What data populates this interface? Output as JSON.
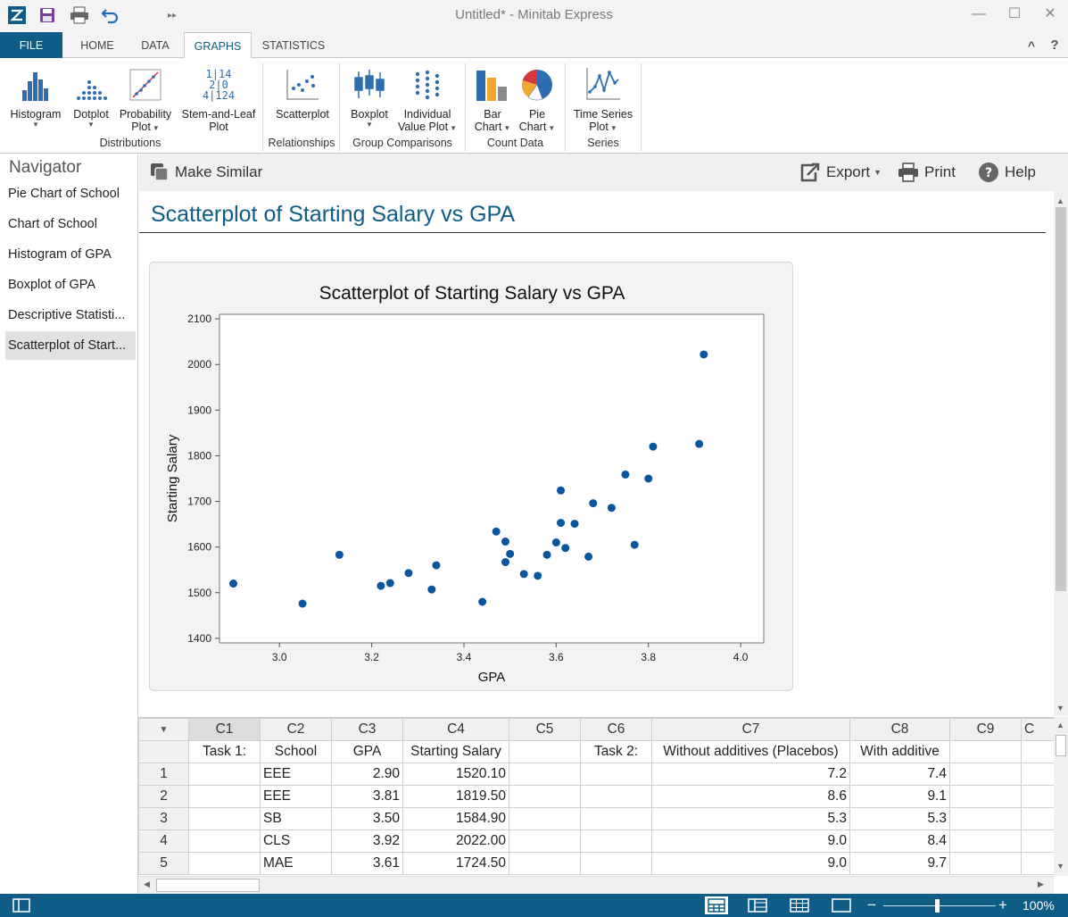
{
  "window": {
    "title": "Untitled* - Minitab Express"
  },
  "window_controls": {
    "minimize": "—",
    "maximize": "☐",
    "close": "✕"
  },
  "quick_access": {
    "overflow": "▸▸"
  },
  "ribbon_tabs": [
    "FILE",
    "HOME",
    "DATA",
    "GRAPHS",
    "STATISTICS"
  ],
  "ribbon_right": {
    "collapse": "^",
    "help": "?"
  },
  "ribbon": {
    "histogram": "Histogram",
    "dotplot": "Dotplot",
    "probability_plot": [
      "Probability",
      "Plot"
    ],
    "stem_leaf": [
      "Stem-and-Leaf",
      "Plot"
    ],
    "stem_leaf_icon": [
      "1|14",
      "2|0",
      "4|124"
    ],
    "scatterplot": "Scatterplot",
    "boxplot": "Boxplot",
    "ivp": [
      "Individual",
      "Value Plot"
    ],
    "bar_chart": [
      "Bar",
      "Chart"
    ],
    "pie_chart": [
      "Pie",
      "Chart"
    ],
    "time_series": [
      "Time Series",
      "Plot"
    ],
    "groups": [
      "Distributions",
      "Relationships",
      "Group Comparisons",
      "Count Data",
      "Series"
    ]
  },
  "navigator": {
    "header": "Navigator",
    "items": [
      "Pie Chart of School",
      "Chart of School",
      "Histogram of GPA",
      "Boxplot of GPA",
      "Descriptive Statisti...",
      "Scatterplot of Start..."
    ]
  },
  "output_toolbar": {
    "make_similar": "Make Similar",
    "export": "Export",
    "print": "Print",
    "help": "Help"
  },
  "output": {
    "title": "Scatterplot of Starting Salary vs GPA"
  },
  "colors": {
    "accent": "#0f5d86",
    "point": "#0a55a0"
  },
  "chart_data": {
    "type": "scatter",
    "title": "Scatterplot of Starting Salary vs GPA",
    "xlabel": "GPA",
    "ylabel": "Starting Salary",
    "xlim": [
      2.87,
      4.05
    ],
    "ylim": [
      1390,
      2110
    ],
    "xticks": [
      3.0,
      3.2,
      3.4,
      3.6,
      3.8,
      4.0
    ],
    "yticks": [
      1400,
      1500,
      1600,
      1700,
      1800,
      1900,
      2000,
      2100
    ],
    "xtick_labels": [
      "3.0",
      "3.2",
      "3.4",
      "3.6",
      "3.8",
      "4.0"
    ],
    "ytick_labels": [
      "1400",
      "1500",
      "1600",
      "1700",
      "1800",
      "1900",
      "2000",
      "2100"
    ],
    "grid": false,
    "points": [
      [
        2.9,
        1520
      ],
      [
        3.05,
        1476
      ],
      [
        3.13,
        1583
      ],
      [
        3.22,
        1515
      ],
      [
        3.24,
        1521
      ],
      [
        3.28,
        1543
      ],
      [
        3.33,
        1507
      ],
      [
        3.34,
        1560
      ],
      [
        3.44,
        1480
      ],
      [
        3.47,
        1634
      ],
      [
        3.49,
        1612
      ],
      [
        3.49,
        1567
      ],
      [
        3.5,
        1585
      ],
      [
        3.53,
        1541
      ],
      [
        3.56,
        1537
      ],
      [
        3.58,
        1583
      ],
      [
        3.6,
        1610
      ],
      [
        3.61,
        1724
      ],
      [
        3.61,
        1653
      ],
      [
        3.62,
        1598
      ],
      [
        3.64,
        1651
      ],
      [
        3.67,
        1579
      ],
      [
        3.68,
        1696
      ],
      [
        3.72,
        1686
      ],
      [
        3.75,
        1759
      ],
      [
        3.77,
        1605
      ],
      [
        3.8,
        1750
      ],
      [
        3.81,
        1820
      ],
      [
        3.91,
        1826
      ],
      [
        3.92,
        2022
      ]
    ]
  },
  "worksheet": {
    "columns": [
      "C1",
      "C2",
      "C3",
      "C4",
      "C5",
      "C6",
      "C7",
      "C8",
      "C9",
      "C"
    ],
    "names": [
      "Task 1:",
      "School",
      "GPA",
      "Starting Salary",
      "",
      "Task 2:",
      "Without additives (Placebos)",
      "With additive",
      "",
      ""
    ],
    "rows": [
      [
        "1",
        "",
        "EEE",
        "2.90",
        "1520.10",
        "",
        "",
        "7.2",
        "7.4",
        "",
        ""
      ],
      [
        "2",
        "",
        "EEE",
        "3.81",
        "1819.50",
        "",
        "",
        "8.6",
        "9.1",
        "",
        ""
      ],
      [
        "3",
        "",
        "SB",
        "3.50",
        "1584.90",
        "",
        "",
        "5.3",
        "5.3",
        "",
        ""
      ],
      [
        "4",
        "",
        "CLS",
        "3.92",
        "2022.00",
        "",
        "",
        "9.0",
        "8.4",
        "",
        ""
      ],
      [
        "5",
        "",
        "MAE",
        "3.61",
        "1724.50",
        "",
        "",
        "9.0",
        "9.7",
        "",
        ""
      ]
    ]
  },
  "status": {
    "zoom": "100%",
    "minus": "−",
    "plus": "+"
  }
}
